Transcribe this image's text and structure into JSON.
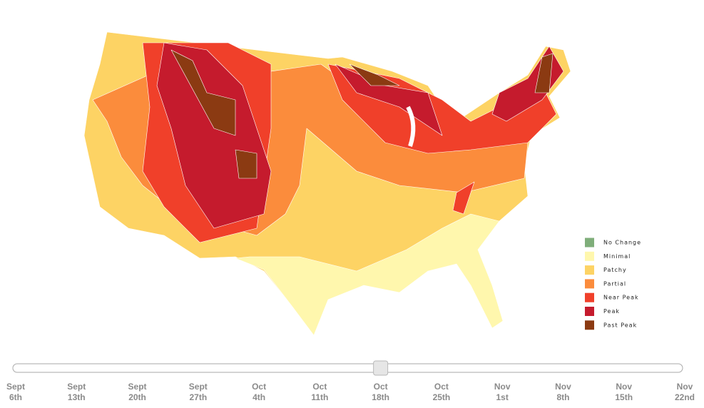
{
  "legend": [
    {
      "label": "No Change",
      "color": "#7fae7a"
    },
    {
      "label": "Minimal",
      "color": "#fff7ad"
    },
    {
      "label": "Patchy",
      "color": "#fdd364"
    },
    {
      "label": "Partial",
      "color": "#fb8c3c"
    },
    {
      "label": "Near Peak",
      "color": "#f0402a"
    },
    {
      "label": "Peak",
      "color": "#c51b2d"
    },
    {
      "label": "Past Peak",
      "color": "#8b3a12"
    }
  ],
  "slider": {
    "selected_index": 6,
    "dates": [
      {
        "month": "Sept",
        "day": "6th"
      },
      {
        "month": "Sept",
        "day": "13th"
      },
      {
        "month": "Sept",
        "day": "20th"
      },
      {
        "month": "Sept",
        "day": "27th"
      },
      {
        "month": "Oct",
        "day": "4th"
      },
      {
        "month": "Oct",
        "day": "11th"
      },
      {
        "month": "Oct",
        "day": "18th"
      },
      {
        "month": "Oct",
        "day": "25th"
      },
      {
        "month": "Nov",
        "day": "1st"
      },
      {
        "month": "Nov",
        "day": "8th"
      },
      {
        "month": "Nov",
        "day": "15th"
      },
      {
        "month": "Nov",
        "day": "22nd"
      }
    ]
  }
}
